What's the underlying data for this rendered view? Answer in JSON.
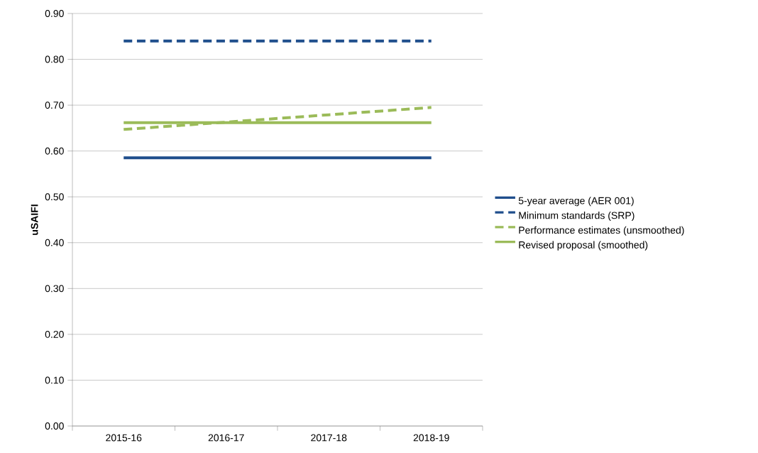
{
  "chart_data": {
    "type": "line",
    "ylabel": "uSAIFI",
    "categories": [
      "2015-16",
      "2016-17",
      "2017-18",
      "2018-19"
    ],
    "series": [
      {
        "name": "5-year average (AER 001)",
        "color": "#1f4e8c",
        "line_style": "solid",
        "values": [
          0.585,
          0.585,
          0.585,
          0.585
        ]
      },
      {
        "name": "Minimum standards (SRP)",
        "color": "#1f4e8c",
        "line_style": "dashed",
        "values": [
          0.84,
          0.84,
          0.84,
          0.84
        ]
      },
      {
        "name": "Performance estimates (unsmoothed)",
        "color": "#9bbb59",
        "line_style": "dashed",
        "values": [
          0.647,
          0.663,
          0.679,
          0.695
        ]
      },
      {
        "name": "Revised proposal (smoothed)",
        "color": "#9bbb59",
        "line_style": "solid",
        "values": [
          0.662,
          0.662,
          0.662,
          0.662
        ]
      }
    ],
    "ylim": [
      0,
      0.9
    ],
    "yticks": [
      {
        "value": 0,
        "label": "0.00"
      },
      {
        "value": 0.1,
        "label": "0.10"
      },
      {
        "value": 0.2,
        "label": "0.20"
      },
      {
        "value": 0.3,
        "label": "0.30"
      },
      {
        "value": 0.4,
        "label": "0.40"
      },
      {
        "value": 0.5,
        "label": "0.50"
      },
      {
        "value": 0.6,
        "label": "0.60"
      },
      {
        "value": 0.7,
        "label": "0.70"
      },
      {
        "value": 0.8,
        "label": "0.80"
      },
      {
        "value": 0.9,
        "label": "0.90"
      }
    ],
    "grid": "y",
    "legend": "right"
  }
}
